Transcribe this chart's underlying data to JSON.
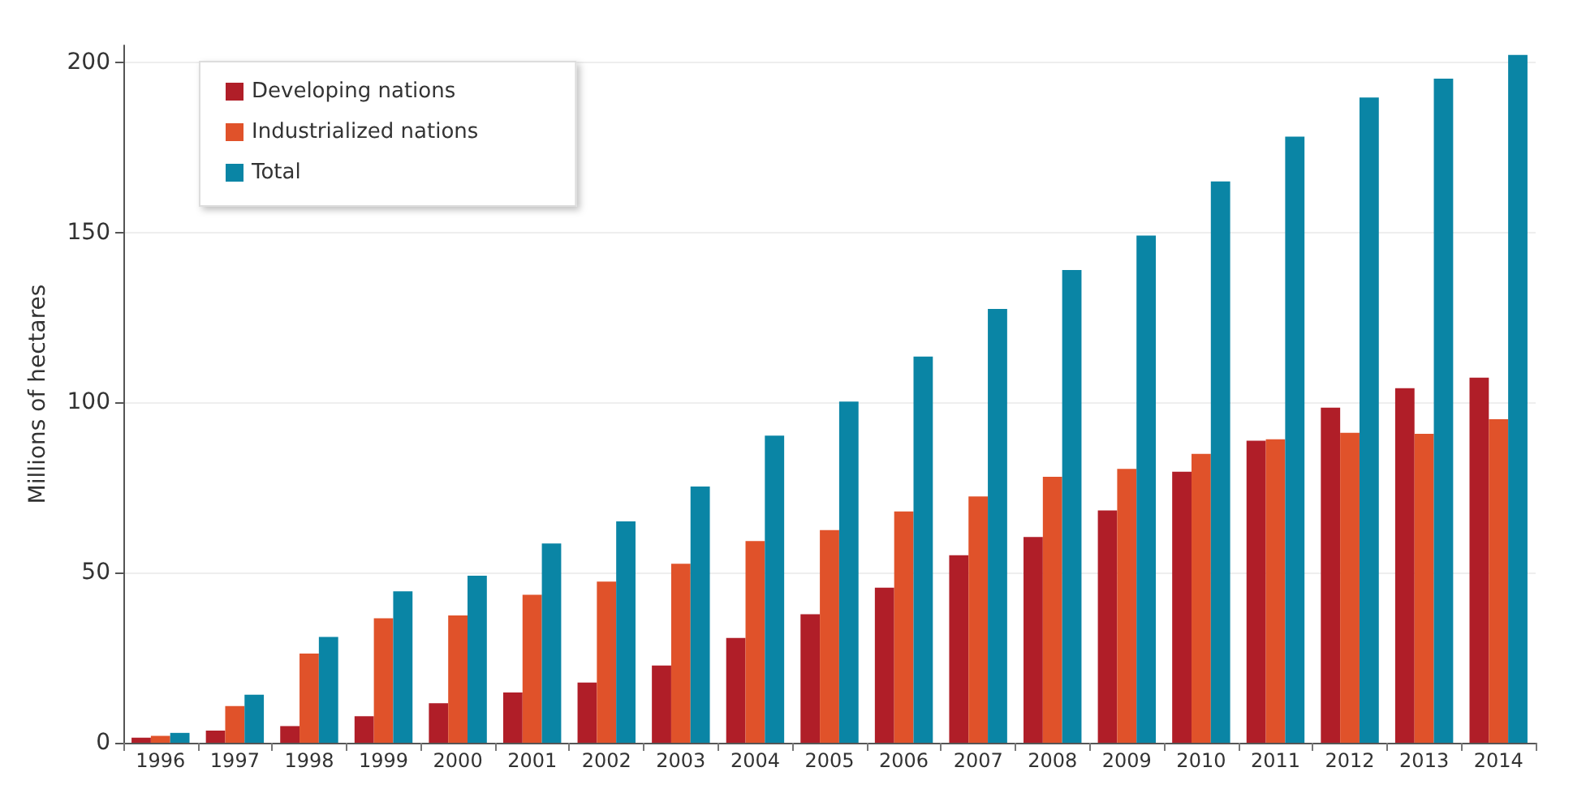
{
  "chart_data": {
    "type": "bar",
    "ylabel": "Millions of hectares",
    "categories": [
      "1996",
      "1997",
      "1998",
      "1999",
      "2000",
      "2001",
      "2002",
      "2003",
      "2004",
      "2005",
      "2006",
      "2007",
      "2008",
      "2009",
      "2010",
      "2011",
      "2012",
      "2013",
      "2014"
    ],
    "series": [
      {
        "name": "Developing nations",
        "color": "#b01e28",
        "values": [
          1.5,
          3.6,
          4.9,
          7.8,
          11.6,
          14.8,
          17.7,
          22.7,
          30.8,
          37.8,
          45.6,
          55.1,
          60.5,
          68.3,
          79.7,
          88.8,
          98.5,
          104.2,
          107.3
        ]
      },
      {
        "name": "Industrialized nations",
        "color": "#e0522a",
        "values": [
          2,
          10.8,
          26.2,
          36.6,
          37.4,
          43.5,
          47.4,
          52.6,
          59.3,
          62.5,
          68,
          72.4,
          78.2,
          80.5,
          84.9,
          89.2,
          91.1,
          90.8,
          95.1
        ]
      },
      {
        "name": "Total",
        "color": "#0a85a5",
        "values": [
          2.9,
          14.1,
          31.1,
          44.5,
          49.1,
          58.6,
          65.1,
          75.3,
          90.3,
          100.3,
          113.5,
          127.5,
          139,
          149.1,
          165,
          178.2,
          189.7,
          195.2,
          202.2
        ]
      }
    ],
    "ylim": [
      0,
      205
    ],
    "yticks": [
      0,
      50,
      100,
      150,
      200
    ],
    "grid": "y",
    "legend": "top left"
  }
}
